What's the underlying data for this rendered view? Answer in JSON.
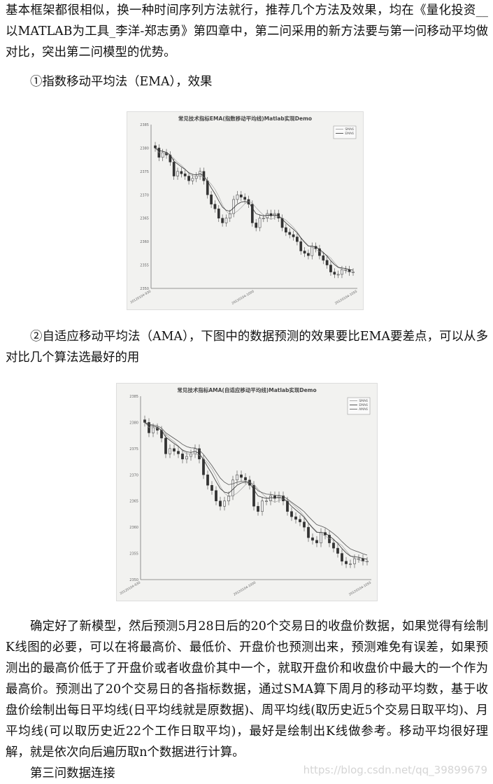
{
  "intro": "基本框架都很相似，换一种时间序列方法就行，推荐几个方法及效果，均在《量化投资__以MATLAB为工具_李洋-郑志勇》第四章中，第二问采用的新方法要与第一问移动平均做对比，突出第二问模型的优势。",
  "section1": "①指数移动平均法（EMA），效果",
  "section2": "②自适应移动平均法（AMA），下图中的数据预测的效果要比EMA要差点，可以从多对比几个算法选最好的用",
  "body": "确定好了新模型，然后预测5月28日后的20个交易日的收盘价数据，如果觉得有绘制K线图的必要，可以在将最高价、最低价、开盘价也预测出来，预测难免有误差，如果预测出的最高价低于了开盘价或者收盘价其中一个，就取开盘价和收盘价中最大的一个作为最高价。预测出了20个交易日的各指标数据，通过SMA算下周月的移动平均数，基于收盘价绘制出每日平均线(日平均线就是原数据)、周平均线(取历史近5个交易日取平均)、月平均线(可以取历史近22个工作日取平均)，最好是绘制出K线做参考。移动平均很好理解，就是依次向后遍历取n个数据进行计算。",
  "section3": "第三问数据连接",
  "watermark": "https://blog.csdn.net/qq_39899679",
  "chart_data": [
    {
      "type": "candlestick",
      "title": "常见技术指标EMA(指数移动平均线)Matlab实现Demo",
      "ylim": [
        2350,
        2385
      ],
      "yticks": [
        "2385",
        "2380",
        "2375",
        "2370",
        "2365",
        "2360",
        "2355",
        "2350"
      ],
      "xticks": [
        "20120104-930",
        "20120104-1000",
        "20120104-1055"
      ],
      "legend": [
        "SMA6",
        "EMA6"
      ],
      "legend_position": "top-right",
      "close": [
        2380,
        2378,
        2379,
        2378.5,
        2377,
        2374,
        2375,
        2374.5,
        2374,
        2373,
        2373.5,
        2374,
        2375,
        2373,
        2370,
        2368,
        2367,
        2365,
        2364,
        2365,
        2366,
        2369,
        2370,
        2369.5,
        2369,
        2368,
        2364,
        2363,
        2365,
        2365,
        2366,
        2365.5,
        2366,
        2365,
        2363,
        2362,
        2361.5,
        2361,
        2360,
        2358,
        2357.5,
        2357,
        2359,
        2358.5,
        2357,
        2356,
        2355,
        2353.5,
        2353,
        2353,
        2354,
        2354,
        2353.5,
        2353.5
      ]
    },
    {
      "type": "candlestick",
      "title": "常见技术指标AMA(自适应移动平均线)Matlab实现Demo",
      "ylim": [
        2350,
        2385
      ],
      "yticks": [
        "2385",
        "2380",
        "2375",
        "2370",
        "2365",
        "2360",
        "2355",
        "2350"
      ],
      "xticks": [
        "20120104-930",
        "20120104-1000",
        "20120104-1055"
      ],
      "legend": [
        "SMA6",
        "EMA6",
        "AMA6"
      ],
      "legend_position": "top-right",
      "close": [
        2380,
        2378,
        2379,
        2378.5,
        2377,
        2374,
        2375,
        2374.5,
        2374,
        2373,
        2373.5,
        2374,
        2375,
        2373,
        2370,
        2368,
        2367,
        2365,
        2364,
        2365,
        2366,
        2369,
        2370,
        2369.5,
        2369,
        2368,
        2364,
        2363,
        2365,
        2365,
        2366,
        2365.5,
        2366,
        2365,
        2363,
        2362,
        2361.5,
        2361,
        2360,
        2358,
        2357.5,
        2357,
        2359,
        2358.5,
        2357,
        2356,
        2355,
        2353.5,
        2353,
        2353,
        2354,
        2354,
        2353.5,
        2353.5
      ]
    }
  ]
}
